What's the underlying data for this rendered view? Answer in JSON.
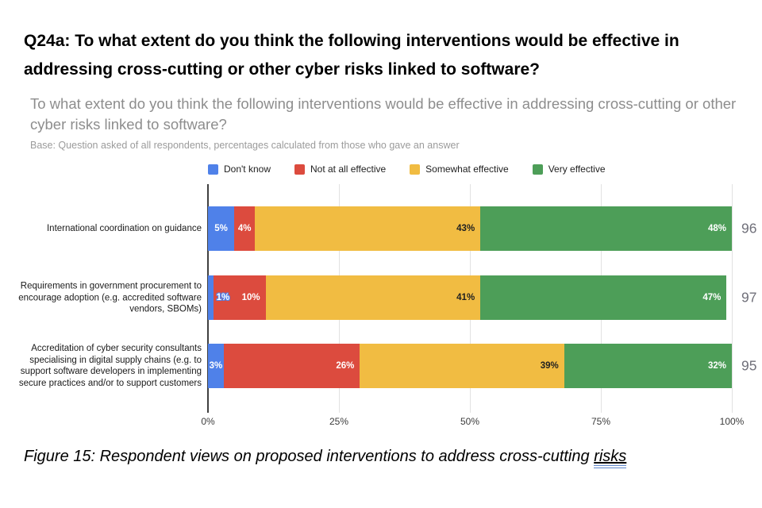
{
  "page": {
    "title": "Q24a: To what extent do you think the following interventions would be effective in addressing cross-cutting or other cyber risks linked to software?",
    "caption_prefix": "Figure 15: Respondent views on proposed interventions to address cross-cutting ",
    "caption_underlined": "risks"
  },
  "chart": {
    "subtitle": "To what extent do you think the following interventions would be effective in addressing cross-cutting or other cyber risks linked to software?",
    "base_note": "Base: Question asked of all respondents, percentages calculated from those who gave an answer"
  },
  "chart_data": {
    "type": "bar",
    "orientation": "horizontal",
    "stacked": true,
    "title": "To what extent do you think the following interventions would be effective in addressing cross-cutting or other cyber risks linked to software?",
    "categories": [
      "International coordination on guidance",
      "Requirements in government procurement to encourage adoption (e.g. accredited software vendors, SBOMs)",
      "Accreditation of cyber security consultants specialising in digital supply chains (e.g. to support software developers in implementing secure practices and/or to support customers"
    ],
    "series": [
      {
        "name": "Don't know",
        "color": "#4f81e9",
        "label_color": "#ffffff",
        "values": [
          5,
          1,
          3
        ]
      },
      {
        "name": "Not at all effective",
        "color": "#dc4b3e",
        "label_color": "#ffffff",
        "values": [
          4,
          10,
          26
        ]
      },
      {
        "name": "Somewhat effective",
        "color": "#f1bc42",
        "label_color": "#212121",
        "values": [
          43,
          41,
          39
        ]
      },
      {
        "name": "Very effective",
        "color": "#4d9e58",
        "label_color": "#ffffff",
        "values": [
          48,
          47,
          32
        ]
      }
    ],
    "totals": [
      96,
      97,
      95
    ],
    "x_axis": {
      "tick_values": [
        0,
        25,
        50,
        75,
        100
      ],
      "tick_labels": [
        "0%",
        "25%",
        "50%",
        "75%",
        "100%"
      ]
    },
    "xlim": [
      0,
      100
    ],
    "legend_position": "top",
    "grid": true
  }
}
